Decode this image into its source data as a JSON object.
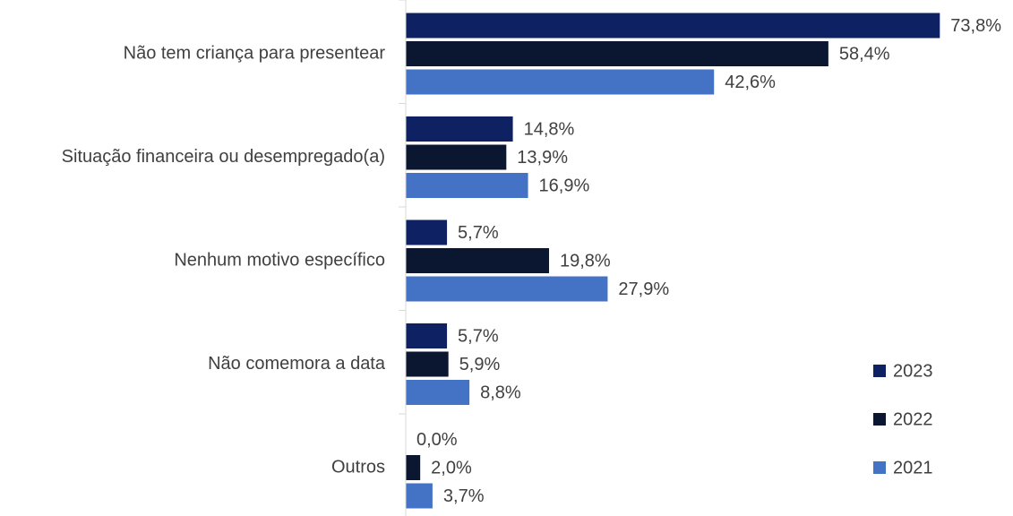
{
  "chart_data": {
    "type": "bar",
    "orientation": "horizontal",
    "categories": [
      "Não tem criança para presentear",
      "Situação financeira ou desempregado(a)",
      "Nenhum motivo específico",
      "Não comemora a data",
      "Outros"
    ],
    "series": [
      {
        "name": "2023",
        "color": "#0e2263",
        "values": [
          73.8,
          14.8,
          5.7,
          5.7,
          0.0
        ],
        "value_labels": [
          "73,8%",
          "14,8%",
          "5,7%",
          "5,7%",
          "0,0%"
        ]
      },
      {
        "name": "2022",
        "color": "#0b1730",
        "values": [
          58.4,
          13.9,
          19.8,
          5.9,
          2.0
        ],
        "value_labels": [
          "58,4%",
          "13,9%",
          "19,8%",
          "5,9%",
          "2,0%"
        ]
      },
      {
        "name": "2021",
        "color": "#4472c4",
        "values": [
          42.6,
          16.9,
          27.9,
          8.8,
          3.7
        ],
        "value_labels": [
          "42,6%",
          "16,9%",
          "27,9%",
          "8,8%",
          "3,7%"
        ]
      }
    ],
    "xlim": [
      0,
      74
    ],
    "legend": "lower right"
  }
}
